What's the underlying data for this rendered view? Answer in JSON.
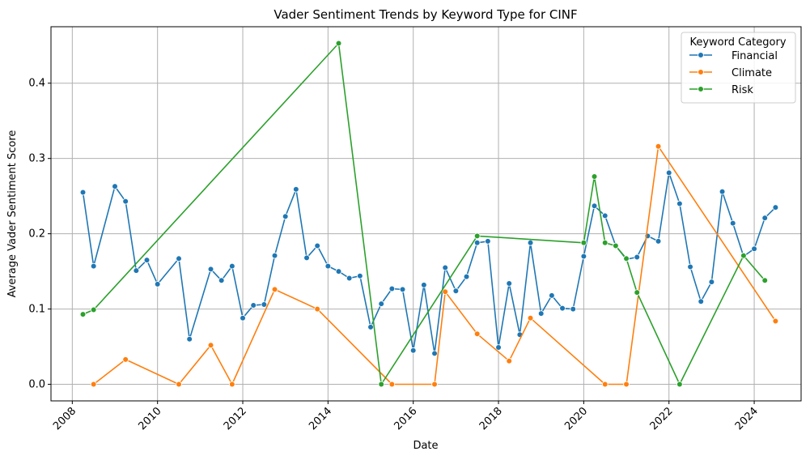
{
  "chart_data": {
    "type": "line",
    "title": "Vader Sentiment Trends by Keyword Type for CINF",
    "xlabel": "Date",
    "ylabel": "Average Vader Sentiment Score",
    "xlim": [
      2007.5,
      2025.1
    ],
    "ylim": [
      -0.022,
      0.475
    ],
    "xticks": [
      2008,
      2010,
      2012,
      2014,
      2016,
      2018,
      2020,
      2022,
      2024
    ],
    "yticks": [
      0.0,
      0.1,
      0.2,
      0.3,
      0.4
    ],
    "ytick_labels": [
      "0.0",
      "0.1",
      "0.2",
      "0.3",
      "0.4"
    ],
    "grid": true,
    "legend_title": "Keyword Category",
    "legend_position": "top-right",
    "series": [
      {
        "name": "Financial",
        "color": "#1f77b4",
        "x": [
          2008.25,
          2008.5,
          2009.0,
          2009.25,
          2009.5,
          2009.75,
          2010.0,
          2010.5,
          2010.75,
          2011.25,
          2011.5,
          2011.75,
          2012.0,
          2012.25,
          2012.5,
          2012.75,
          2013.0,
          2013.25,
          2013.5,
          2013.75,
          2014.0,
          2014.25,
          2014.5,
          2014.75,
          2015.0,
          2015.25,
          2015.5,
          2015.75,
          2016.0,
          2016.25,
          2016.5,
          2016.75,
          2017.0,
          2017.25,
          2017.5,
          2017.75,
          2018.0,
          2018.25,
          2018.5,
          2018.75,
          2019.0,
          2019.25,
          2019.5,
          2019.75,
          2020.0,
          2020.25,
          2020.5,
          2020.75,
          2021.0,
          2021.25,
          2021.5,
          2021.75,
          2022.0,
          2022.25,
          2022.5,
          2022.75,
          2023.0,
          2023.25,
          2023.5,
          2023.75,
          2024.0,
          2024.25,
          2024.5
        ],
        "y": [
          0.255,
          0.157,
          0.263,
          0.243,
          0.151,
          0.165,
          0.133,
          0.167,
          0.06,
          0.153,
          0.138,
          0.157,
          0.088,
          0.105,
          0.106,
          0.171,
          0.223,
          0.259,
          0.168,
          0.184,
          0.157,
          0.15,
          0.141,
          0.144,
          0.076,
          0.107,
          0.127,
          0.126,
          0.045,
          0.132,
          0.041,
          0.155,
          0.124,
          0.143,
          0.188,
          0.19,
          0.049,
          0.134,
          0.066,
          0.188,
          0.094,
          0.118,
          0.101,
          0.1,
          0.17,
          0.237,
          0.224,
          0.184,
          0.166,
          0.169,
          0.197,
          0.19,
          0.281,
          0.24,
          0.156,
          0.11,
          0.136,
          0.256,
          0.214,
          0.17,
          0.18,
          0.221,
          0.235
        ]
      },
      {
        "name": "Climate",
        "color": "#ff7f0e",
        "x": [
          2008.5,
          2009.25,
          2010.5,
          2011.25,
          2011.75,
          2012.75,
          2013.75,
          2015.5,
          2016.5,
          2016.75,
          2017.5,
          2018.25,
          2018.75,
          2020.5,
          2021.0,
          2021.75,
          2024.5
        ],
        "y": [
          0.0,
          0.033,
          0.0,
          0.052,
          0.0,
          0.126,
          0.1,
          0.0,
          0.0,
          0.123,
          0.067,
          0.031,
          0.088,
          0.0,
          0.0,
          0.316,
          0.084
        ]
      },
      {
        "name": "Risk",
        "color": "#2ca02c",
        "x": [
          2008.25,
          2008.5,
          2014.25,
          2015.25,
          2017.5,
          2020.0,
          2020.25,
          2020.5,
          2020.75,
          2021.0,
          2021.25,
          2022.25,
          2023.75,
          2024.25
        ],
        "y": [
          0.093,
          0.099,
          0.453,
          0.0,
          0.197,
          0.188,
          0.276,
          0.188,
          0.184,
          0.167,
          0.122,
          0.0,
          0.171,
          0.138
        ]
      }
    ]
  }
}
